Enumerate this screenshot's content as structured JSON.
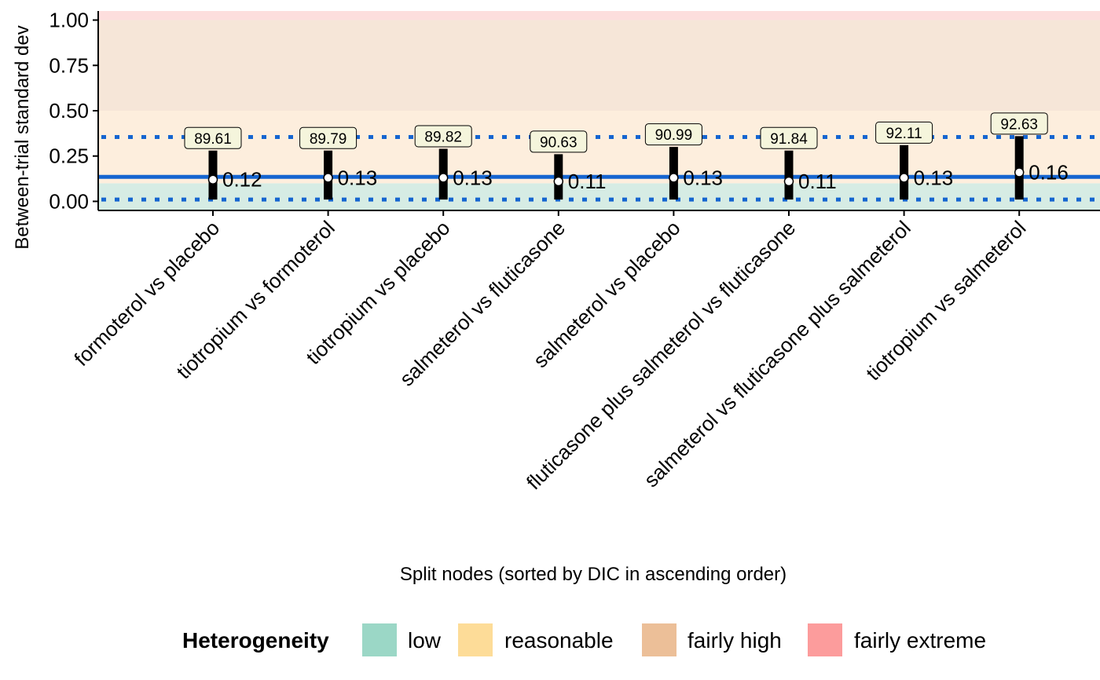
{
  "chart_data": {
    "type": "interval",
    "title": "",
    "xlabel": "Split nodes (sorted by DIC in ascending order)",
    "ylabel": "Between-trial standard dev",
    "ylim": [
      -0.05,
      1.05
    ],
    "yticks": [
      "0.00",
      "0.25",
      "0.50",
      "0.75",
      "1.00"
    ],
    "categories": [
      "formoterol vs placebo",
      "tiotropium vs formoterol",
      "tiotropium vs placebo",
      "salmeterol vs fluticasone",
      "salmeterol vs placebo",
      "fluticasone plus salmeterol vs fluticasone",
      "salmeterol vs fluticasone plus salmeterol",
      "tiotropium vs salmeterol"
    ],
    "median": [
      0.12,
      0.13,
      0.13,
      0.11,
      0.13,
      0.11,
      0.13,
      0.16
    ],
    "median_labels": [
      "0.12",
      "0.13",
      "0.13",
      "0.11",
      "0.13",
      "0.11",
      "0.13",
      "0.16"
    ],
    "lower": [
      0.01,
      0.01,
      0.01,
      0.01,
      0.01,
      0.01,
      0.01,
      0.01
    ],
    "upper": [
      0.28,
      0.28,
      0.29,
      0.26,
      0.3,
      0.28,
      0.31,
      0.36
    ],
    "dic": [
      "89.61",
      "89.79",
      "89.82",
      "90.63",
      "90.99",
      "91.84",
      "92.11",
      "92.63"
    ],
    "reference_line": {
      "median": 0.135,
      "lower": 0.01,
      "upper": 0.355
    },
    "bands": [
      {
        "name": "low",
        "from": -0.05,
        "to": 0.1,
        "color": "#d6ece4",
        "legend_color": "#9bd7c6"
      },
      {
        "name": "reasonable",
        "from": 0.1,
        "to": 0.5,
        "color": "#fdeedd",
        "legend_color": "#fddc98"
      },
      {
        "name": "fairly high",
        "from": 0.5,
        "to": 1.0,
        "color": "#f6e6d8",
        "legend_color": "#ecbf98"
      },
      {
        "name": "fairly extreme",
        "from": 1.0,
        "to": 1.05,
        "color": "#fddedd",
        "legend_color": "#fc9c9c"
      }
    ],
    "colors": {
      "reference": "#1565d0",
      "interval": "#000000",
      "label_fill": "#f5f5dc"
    }
  },
  "legend": {
    "title": "Heterogeneity",
    "items": [
      "low",
      "reasonable",
      "fairly high",
      "fairly extreme"
    ]
  }
}
